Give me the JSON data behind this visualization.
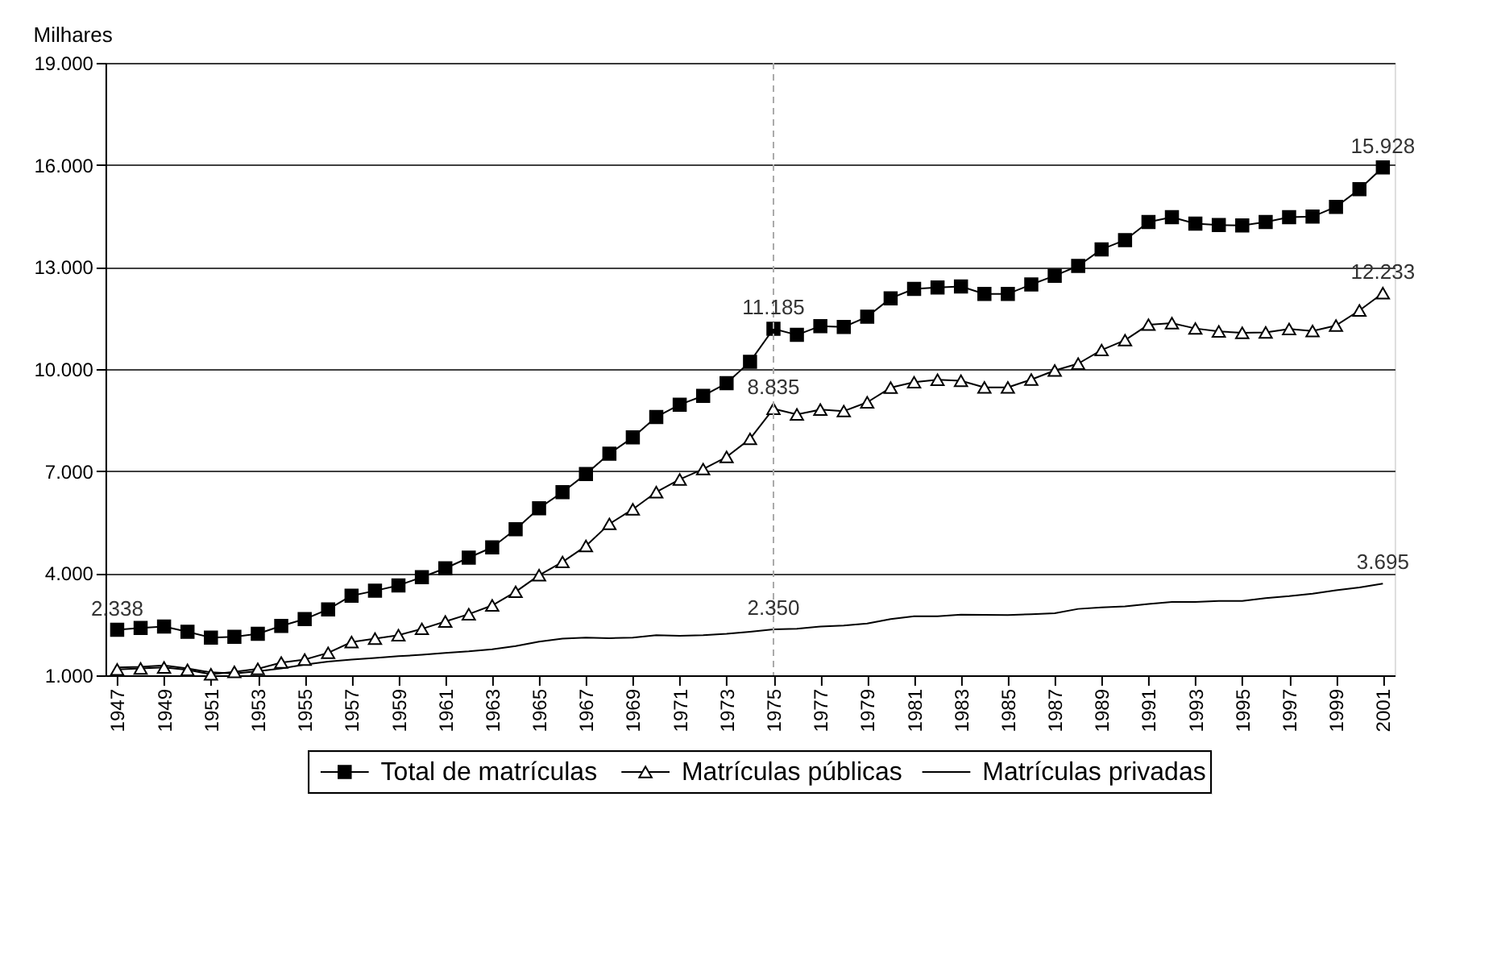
{
  "chart_data": {
    "type": "line",
    "ylabel": "Milhares",
    "x": [
      1947,
      1948,
      1949,
      1950,
      1951,
      1952,
      1953,
      1954,
      1955,
      1956,
      1957,
      1958,
      1959,
      1960,
      1961,
      1962,
      1963,
      1964,
      1965,
      1966,
      1967,
      1968,
      1969,
      1970,
      1971,
      1972,
      1973,
      1974,
      1975,
      1976,
      1977,
      1978,
      1979,
      1980,
      1981,
      1982,
      1983,
      1984,
      1985,
      1986,
      1987,
      1988,
      1989,
      1990,
      1991,
      1992,
      1993,
      1994,
      1995,
      1996,
      1997,
      1998,
      1999,
      2000,
      2001
    ],
    "series": [
      {
        "name": "Total de matrículas",
        "color": "#000000",
        "marker": "square",
        "values": [
          2338,
          2391,
          2434,
          2279,
          2107,
          2133,
          2219,
          2451,
          2650,
          2938,
          3340,
          3484,
          3640,
          3885,
          4144,
          4458,
          4760,
          5293,
          5910,
          6383,
          6913,
          7516,
          7990,
          8593,
          8954,
          9213,
          9583,
          10216,
          11185,
          11004,
          11263,
          11237,
          11538,
          12081,
          12357,
          12400,
          12426,
          12210,
          12210,
          12486,
          12744,
          13032,
          13519,
          13791,
          14321,
          14465,
          14277,
          14235,
          14221,
          14321,
          14465,
          14480,
          14768,
          15285,
          15928
        ]
      },
      {
        "name": "Matrículas públicas",
        "color": "#000000",
        "marker": "triangle",
        "values": [
          1172,
          1200,
          1230,
          1160,
          1030,
          1100,
          1190,
          1375,
          1460,
          1660,
          1977,
          2077,
          2177,
          2365,
          2580,
          2796,
          3054,
          3455,
          3941,
          4330,
          4800,
          5450,
          5880,
          6383,
          6757,
          7060,
          7417,
          7948,
          8835,
          8666,
          8808,
          8765,
          9023,
          9454,
          9613,
          9686,
          9657,
          9460,
          9460,
          9693,
          9958,
          10160,
          10560,
          10849,
          11305,
          11349,
          11193,
          11107,
          11064,
          11078,
          11180,
          11120,
          11280,
          11723,
          12233
        ]
      },
      {
        "name": "Matrículas privadas",
        "color": "#000000",
        "marker": "none",
        "values": [
          1230,
          1250,
          1290,
          1200,
          1086,
          1056,
          1116,
          1200,
          1316,
          1400,
          1460,
          1507,
          1560,
          1603,
          1660,
          1703,
          1762,
          1861,
          1990,
          2077,
          2105,
          2090,
          2107,
          2177,
          2160,
          2177,
          2220,
          2280,
          2350,
          2370,
          2434,
          2464,
          2520,
          2650,
          2736,
          2736,
          2780,
          2775,
          2770,
          2796,
          2822,
          2951,
          2994,
          3024,
          3097,
          3153,
          3153,
          3183,
          3183,
          3270,
          3325,
          3398,
          3497,
          3584,
          3695
        ]
      }
    ],
    "xlim": [
      1946.5,
      2001.5
    ],
    "xticks": [
      1947,
      1949,
      1951,
      1953,
      1955,
      1957,
      1959,
      1961,
      1963,
      1965,
      1967,
      1969,
      1971,
      1973,
      1975,
      1977,
      1979,
      1981,
      1983,
      1985,
      1987,
      1989,
      1991,
      1993,
      1995,
      1997,
      1999,
      2001
    ],
    "ylim": [
      1000,
      19000
    ],
    "yticks": [
      {
        "value": 1000,
        "label": "1.000"
      },
      {
        "value": 4000,
        "label": "4.000"
      },
      {
        "value": 7000,
        "label": "7.000"
      },
      {
        "value": 10000,
        "label": "10.000"
      },
      {
        "value": 13000,
        "label": "13.000"
      },
      {
        "value": 16000,
        "label": "16.000"
      },
      {
        "value": 19000,
        "label": "19.000"
      }
    ],
    "grid": "y",
    "legend": "bottom",
    "ref_lines": [
      {
        "axis": "x",
        "value": 1975,
        "color": "#aaaaaa",
        "line_style": "dashed"
      }
    ],
    "annotations": [
      {
        "text": "2.338",
        "x": 1947,
        "y": 2338
      },
      {
        "text": "11.185",
        "x": 1975,
        "y": 11185
      },
      {
        "text": "8.835",
        "x": 1975,
        "y": 8835
      },
      {
        "text": "2.350",
        "x": 1975,
        "y": 2350
      },
      {
        "text": "15.928",
        "x": 2001,
        "y": 15928
      },
      {
        "text": "12.233",
        "x": 2001,
        "y": 12233
      },
      {
        "text": "3.695",
        "x": 2001,
        "y": 3695
      }
    ]
  }
}
